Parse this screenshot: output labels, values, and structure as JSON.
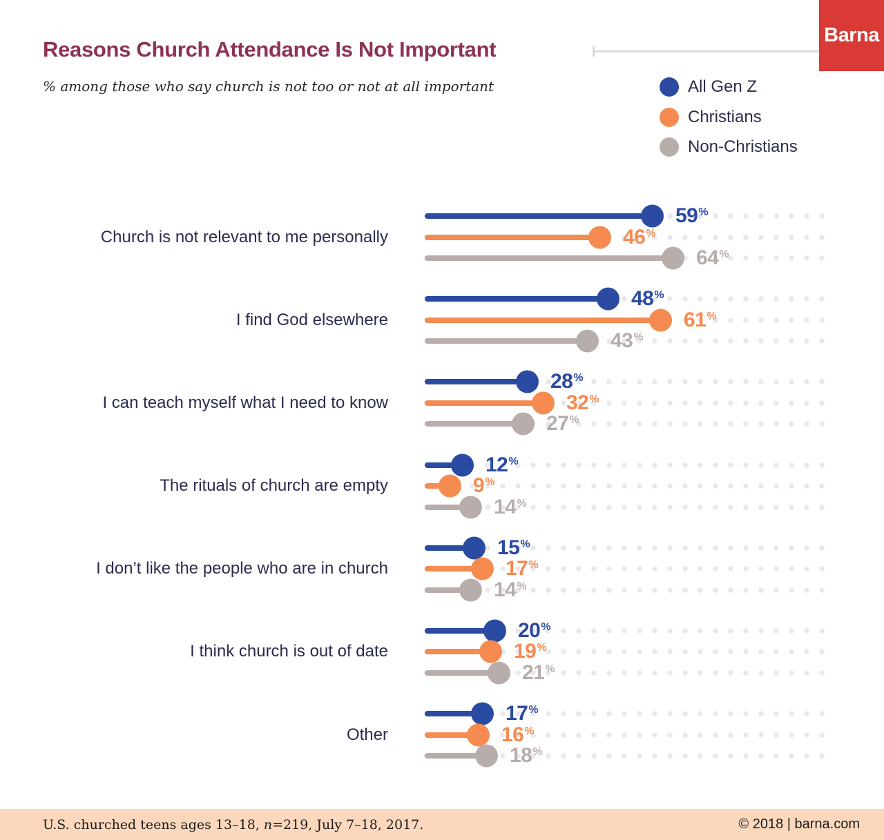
{
  "header": {
    "title": "Reasons Church Attendance Is Not Important",
    "title_color": "#8e3157",
    "subtitle": "% among those who say church is not too or not at all important",
    "logo_text": "Barna",
    "logo_color": "#d93a35"
  },
  "chart_data": {
    "type": "bar",
    "subtype": "lollipop",
    "orientation": "horizontal",
    "title": "Reasons Church Attendance Is Not Important",
    "subtitle": "% among those who say church is not too or not at all important",
    "unit": "%",
    "xlim": [
      0,
      100
    ],
    "grid": "dotted-row-background",
    "legend_position": "top-right",
    "categories": [
      "Church is not relevant to me personally",
      "I find God elsewhere",
      "I can teach myself what I need to know",
      "The rituals of church are empty",
      "I don’t like the people who are in church",
      "I think church is out of date",
      "Other"
    ],
    "series": [
      {
        "name": "All Gen Z",
        "color": "#2b4aa2",
        "values": [
          59,
          48,
          28,
          12,
          15,
          20,
          17
        ]
      },
      {
        "name": "Christians",
        "color": "#f58b51",
        "values": [
          46,
          61,
          32,
          9,
          17,
          19,
          16
        ]
      },
      {
        "name": "Non-Christians",
        "color": "#b7aeac",
        "values": [
          64,
          43,
          27,
          14,
          14,
          21,
          18
        ]
      }
    ]
  },
  "footer": {
    "band_color": "#fbd8bd",
    "source_prefix": "U.S. churched teens ages 13–18, ",
    "source_n": "n",
    "source_suffix": "=219, July 7–18, 2017.",
    "copyright": "© 2018 | barna.com"
  }
}
